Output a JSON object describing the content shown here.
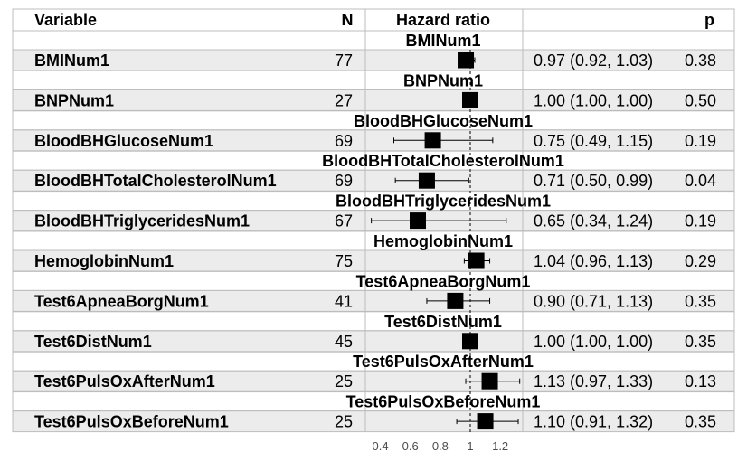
{
  "chart_data": {
    "type": "forest",
    "headers": {
      "variable": "Variable",
      "n": "N",
      "hazard_ratio": "Hazard ratio",
      "p": "p"
    },
    "xticks": [
      0.4,
      0.6,
      0.8,
      1,
      1.2
    ],
    "xtick_labels": [
      "0.4",
      "0.6",
      "0.8",
      "1",
      "1.2"
    ],
    "xlim": [
      0.3,
      1.35
    ],
    "reference_line": 1,
    "rows": [
      {
        "section": "BMINum1",
        "variable": "BMINum1",
        "n": "77",
        "estimate": 0.97,
        "lower": 0.92,
        "upper": 1.03,
        "ci_text": "0.97 (0.92, 1.03)",
        "p": "0.38"
      },
      {
        "section": "BNPNum1",
        "variable": "BNPNum1",
        "n": "27",
        "estimate": 1.0,
        "lower": 1.0,
        "upper": 1.0,
        "ci_text": "1.00 (1.00, 1.00)",
        "p": "0.50"
      },
      {
        "section": "BloodBHGlucoseNum1",
        "variable": "BloodBHGlucoseNum1",
        "n": "69",
        "estimate": 0.75,
        "lower": 0.49,
        "upper": 1.15,
        "ci_text": "0.75 (0.49, 1.15)",
        "p": "0.19"
      },
      {
        "section": "BloodBHTotalCholesterolNum1",
        "variable": "BloodBHTotalCholesterolNum1",
        "n": "69",
        "estimate": 0.71,
        "lower": 0.5,
        "upper": 0.99,
        "ci_text": "0.71 (0.50, 0.99)",
        "p": "0.04"
      },
      {
        "section": "BloodBHTriglyceridesNum1",
        "variable": "BloodBHTriglyceridesNum1",
        "n": "67",
        "estimate": 0.65,
        "lower": 0.34,
        "upper": 1.24,
        "ci_text": "0.65 (0.34, 1.24)",
        "p": "0.19"
      },
      {
        "section": "HemoglobinNum1",
        "variable": "HemoglobinNum1",
        "n": "75",
        "estimate": 1.04,
        "lower": 0.96,
        "upper": 1.13,
        "ci_text": "1.04 (0.96, 1.13)",
        "p": "0.29"
      },
      {
        "section": "Test6ApneaBorgNum1",
        "variable": "Test6ApneaBorgNum1",
        "n": "41",
        "estimate": 0.9,
        "lower": 0.71,
        "upper": 1.13,
        "ci_text": "0.90 (0.71, 1.13)",
        "p": "0.35"
      },
      {
        "section": "Test6DistNum1",
        "variable": "Test6DistNum1",
        "n": "45",
        "estimate": 1.0,
        "lower": 1.0,
        "upper": 1.0,
        "ci_text": "1.00 (1.00, 1.00)",
        "p": "0.35"
      },
      {
        "section": "Test6PulsOxAfterNum1",
        "variable": "Test6PulsOxAfterNum1",
        "n": "25",
        "estimate": 1.13,
        "lower": 0.97,
        "upper": 1.33,
        "ci_text": "1.13 (0.97, 1.33)",
        "p": "0.13"
      },
      {
        "section": "Test6PulsOxBeforeNum1",
        "variable": "Test6PulsOxBeforeNum1",
        "n": "25",
        "estimate": 1.1,
        "lower": 0.91,
        "upper": 1.32,
        "ci_text": "1.10 (0.91, 1.32)",
        "p": "0.35"
      }
    ],
    "colors": {
      "row_fill": "#ececec",
      "grid": "#bdbdbd",
      "text": "#000000",
      "tick_text": "#4d4d4d"
    }
  }
}
